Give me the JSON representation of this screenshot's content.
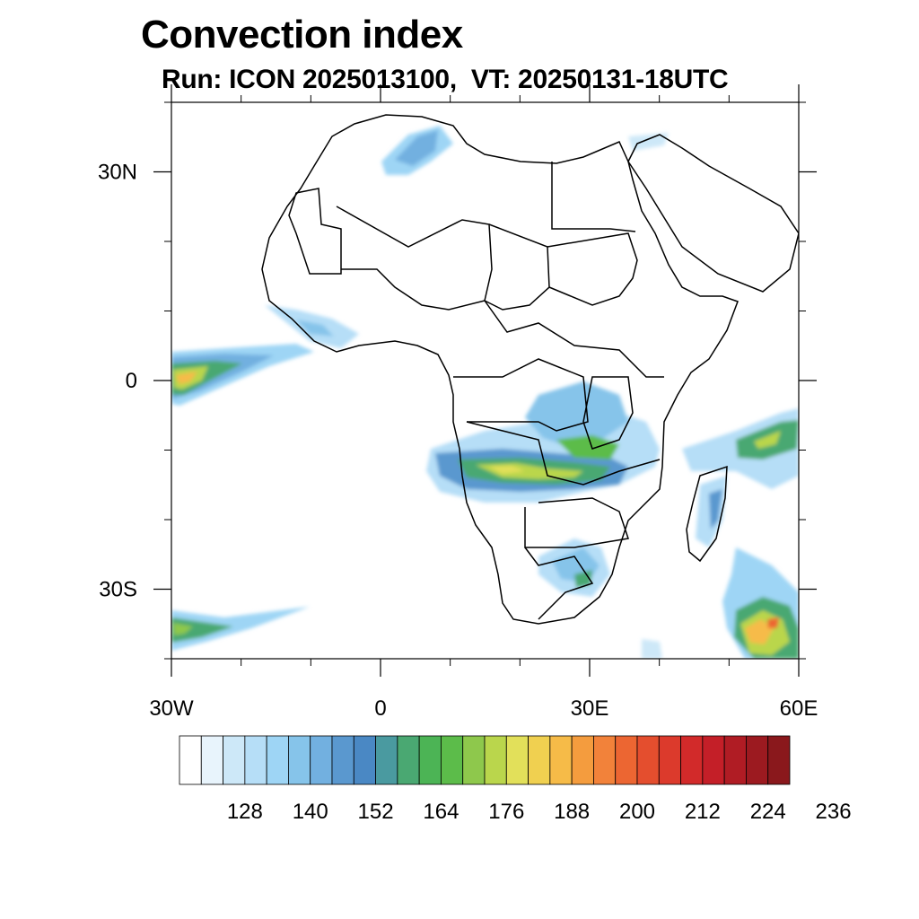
{
  "title": "Convection index",
  "subtitle": "Run: ICON 2025013100,  VT: 20250131-18UTC",
  "map": {
    "region": "Africa",
    "projection": "cylindrical equidistant",
    "lon_range": [
      -30,
      60
    ],
    "lat_range": [
      -40,
      40
    ],
    "lat_ticks": [
      {
        "value": 30,
        "label": "30N"
      },
      {
        "value": 0,
        "label": "0"
      },
      {
        "value": -30,
        "label": "30S"
      }
    ],
    "lon_ticks": [
      {
        "value": -30,
        "label": "30W"
      },
      {
        "value": 0,
        "label": "0"
      },
      {
        "value": 30,
        "label": "30E"
      },
      {
        "value": 60,
        "label": "60E"
      }
    ]
  },
  "colorbar": {
    "levels": [
      128,
      140,
      152,
      164,
      176,
      188,
      200,
      212,
      224,
      236
    ],
    "colors": [
      "#ffffff",
      "#e8f4fc",
      "#cde8f8",
      "#b6def7",
      "#9ed5f5",
      "#86c4ea",
      "#72b0e0",
      "#5a98cf",
      "#4a88c4",
      "#4a9aa0",
      "#4aa872",
      "#4cb455",
      "#5cbc4a",
      "#8ec84c",
      "#bad64c",
      "#e2e05a",
      "#f0d050",
      "#f6bb48",
      "#f49c3e",
      "#f2823a",
      "#ec6632",
      "#e44e2e",
      "#dc3a2c",
      "#d22a2a",
      "#c41f28",
      "#b01c24",
      "#9c1a20",
      "#8a181c"
    ]
  }
}
